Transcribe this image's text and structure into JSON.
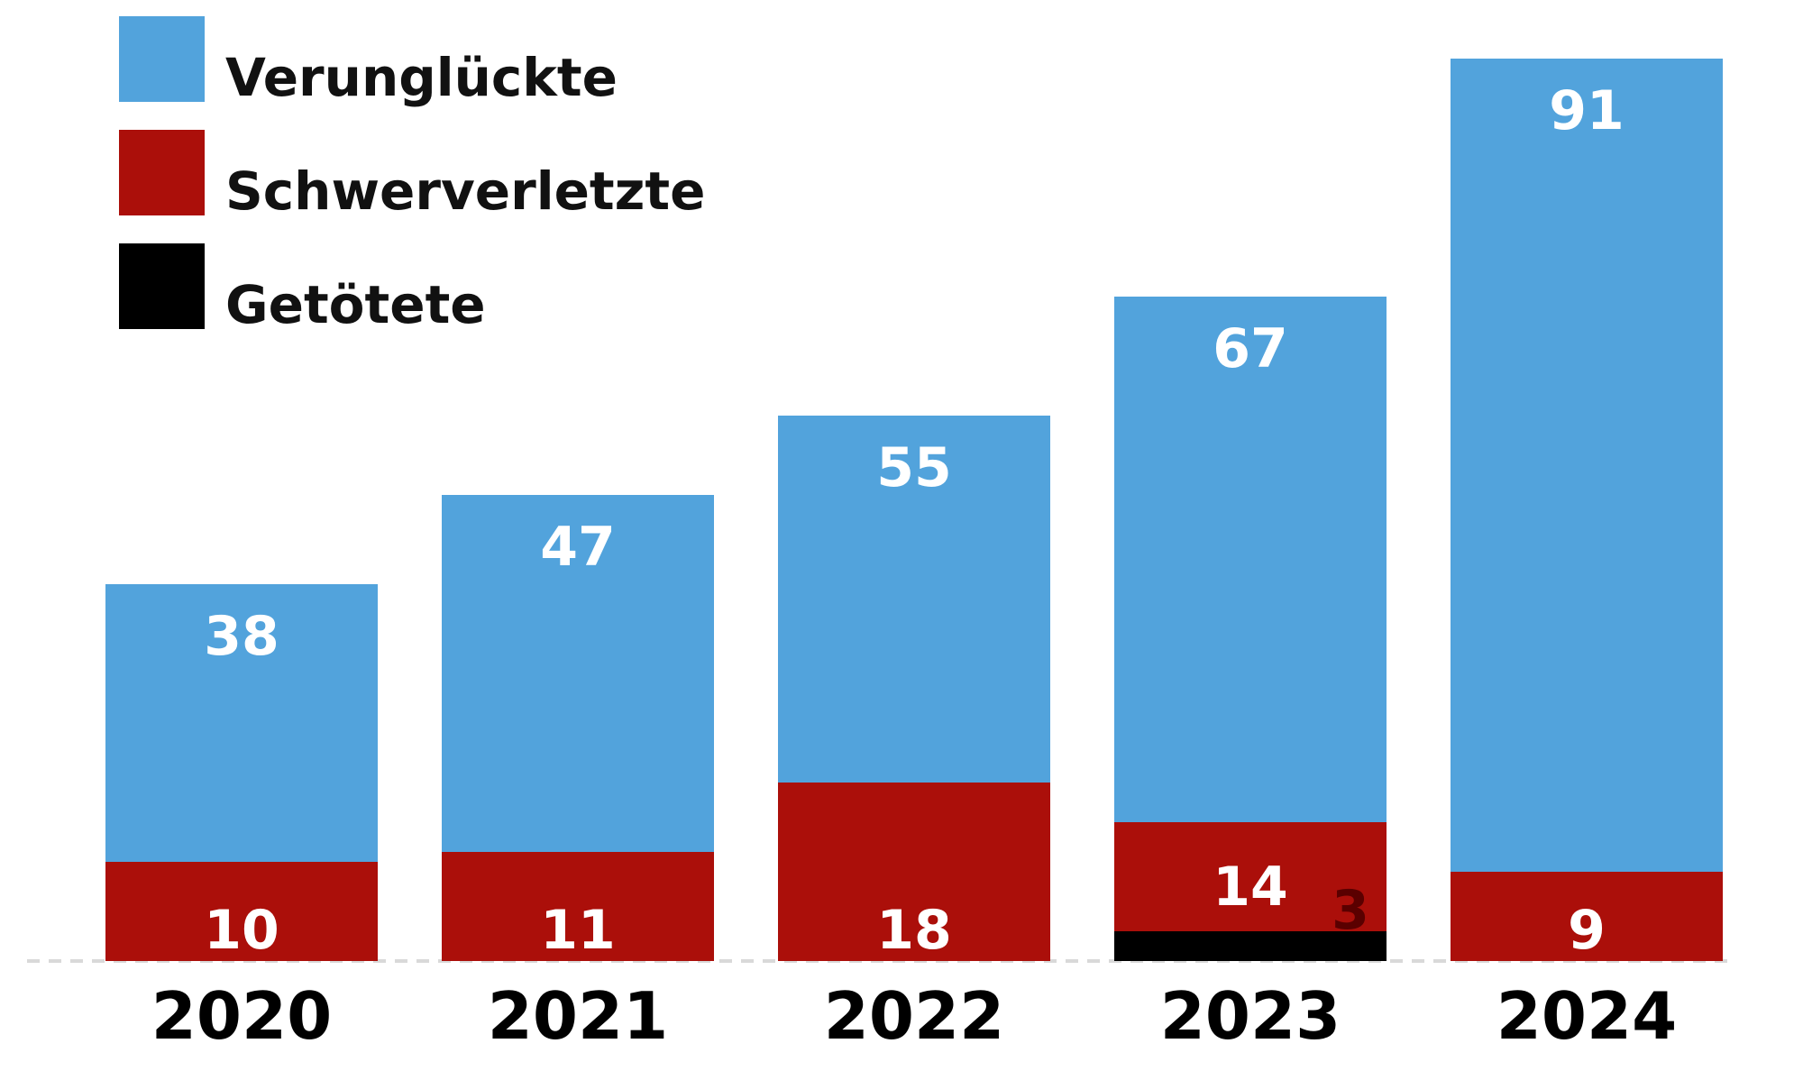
{
  "chart_data": {
    "type": "bar",
    "stacking": "overlaid",
    "categories": [
      "2020",
      "2021",
      "2022",
      "2023",
      "2024"
    ],
    "series": [
      {
        "name": "Verunglückte",
        "color": "#52a3dc",
        "values": [
          38,
          47,
          55,
          67,
          91
        ]
      },
      {
        "name": "Schwerverletzte",
        "color": "#ab0f0a",
        "values": [
          10,
          11,
          18,
          14,
          9
        ]
      },
      {
        "name": "Getötete",
        "color": "#000000",
        "values": [
          0,
          0,
          0,
          3,
          0
        ]
      }
    ],
    "data_labels": {
      "Verunglückte": [
        "38",
        "47",
        "55",
        "67",
        "91"
      ],
      "Schwerverletzte": [
        "10",
        "11",
        "18",
        "14",
        "9"
      ],
      "Getötete": [
        "",
        "",
        "",
        "3",
        ""
      ]
    },
    "legend": {
      "position": "top-left",
      "entries": [
        "Verunglückte",
        "Schwerverletzte",
        "Getötete"
      ]
    },
    "ylim": [
      0,
      100
    ],
    "grid": false,
    "baseline_style": "dashed"
  }
}
